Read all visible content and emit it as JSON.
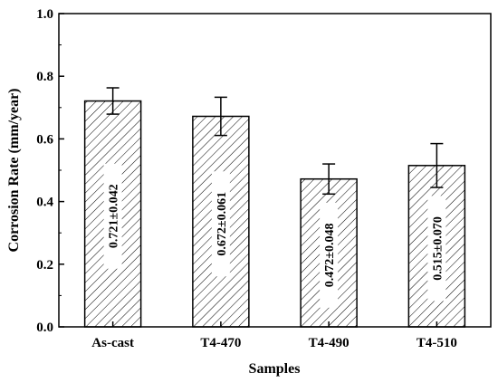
{
  "chart_data": {
    "type": "bar",
    "title": "",
    "xlabel": "Samples",
    "ylabel": "Corrosion Rate (mm/year)",
    "ylim": [
      0.0,
      1.0
    ],
    "y_ticks": [
      0.0,
      0.2,
      0.4,
      0.6,
      0.8,
      1.0
    ],
    "y_tick_labels": [
      "0.0",
      "0.2",
      "0.4",
      "0.6",
      "0.8",
      "1.0"
    ],
    "categories": [
      "As-cast",
      "T4-470",
      "T4-490",
      "T4-510"
    ],
    "values": [
      0.721,
      0.672,
      0.472,
      0.515
    ],
    "errors": [
      0.042,
      0.061,
      0.048,
      0.07
    ],
    "value_labels": [
      "0.721±0.042",
      "0.672±0.061",
      "0.472±0.048",
      "0.515±0.070"
    ],
    "bar_fill": "hatched",
    "bar_color": "#000000",
    "grid": false,
    "legend": "none"
  }
}
